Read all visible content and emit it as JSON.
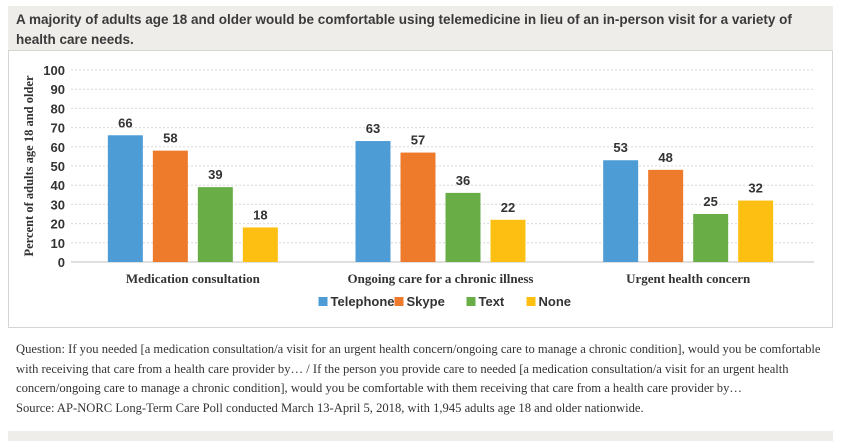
{
  "header": {
    "title": "A majority of adults age 18 and older would be comfortable using telemedicine in lieu of an in-person visit for a variety of health care needs."
  },
  "chart_data": {
    "type": "bar",
    "title": "",
    "ylabel": "Percent of adults age 18 and older",
    "xlabel": "",
    "ylim": [
      0,
      100
    ],
    "yticks": [
      0,
      10,
      20,
      30,
      40,
      50,
      60,
      70,
      80,
      90,
      100
    ],
    "grid": true,
    "legend_position": "bottom",
    "categories": [
      "Medication consultation",
      "Ongoing care for a chronic illness",
      "Urgent health concern"
    ],
    "series": [
      {
        "name": "Telephone",
        "color": "#4d9cd6",
        "values": [
          66,
          63,
          53
        ]
      },
      {
        "name": "Skype",
        "color": "#ee7b2c",
        "values": [
          58,
          57,
          48
        ]
      },
      {
        "name": "Text",
        "color": "#69ad47",
        "values": [
          39,
          36,
          25
        ]
      },
      {
        "name": "None",
        "color": "#fdc012",
        "values": [
          18,
          22,
          32
        ]
      }
    ]
  },
  "footnote": {
    "question": "Question: If you needed [a medication consultation/a visit for an urgent health concern/ongoing care to manage a chronic condition], would you be comfortable with receiving that care from a health care provider by… / If the person you provide care to needed [a medication consultation/a visit for an urgent health concern/ongoing care to manage a chronic condition], would you be comfortable with them receiving that care from a health care provider by…",
    "source": "Source: AP-NORC Long-Term Care Poll conducted March 13-April 5, 2018, with 1,945 adults age 18 and older nationwide."
  }
}
